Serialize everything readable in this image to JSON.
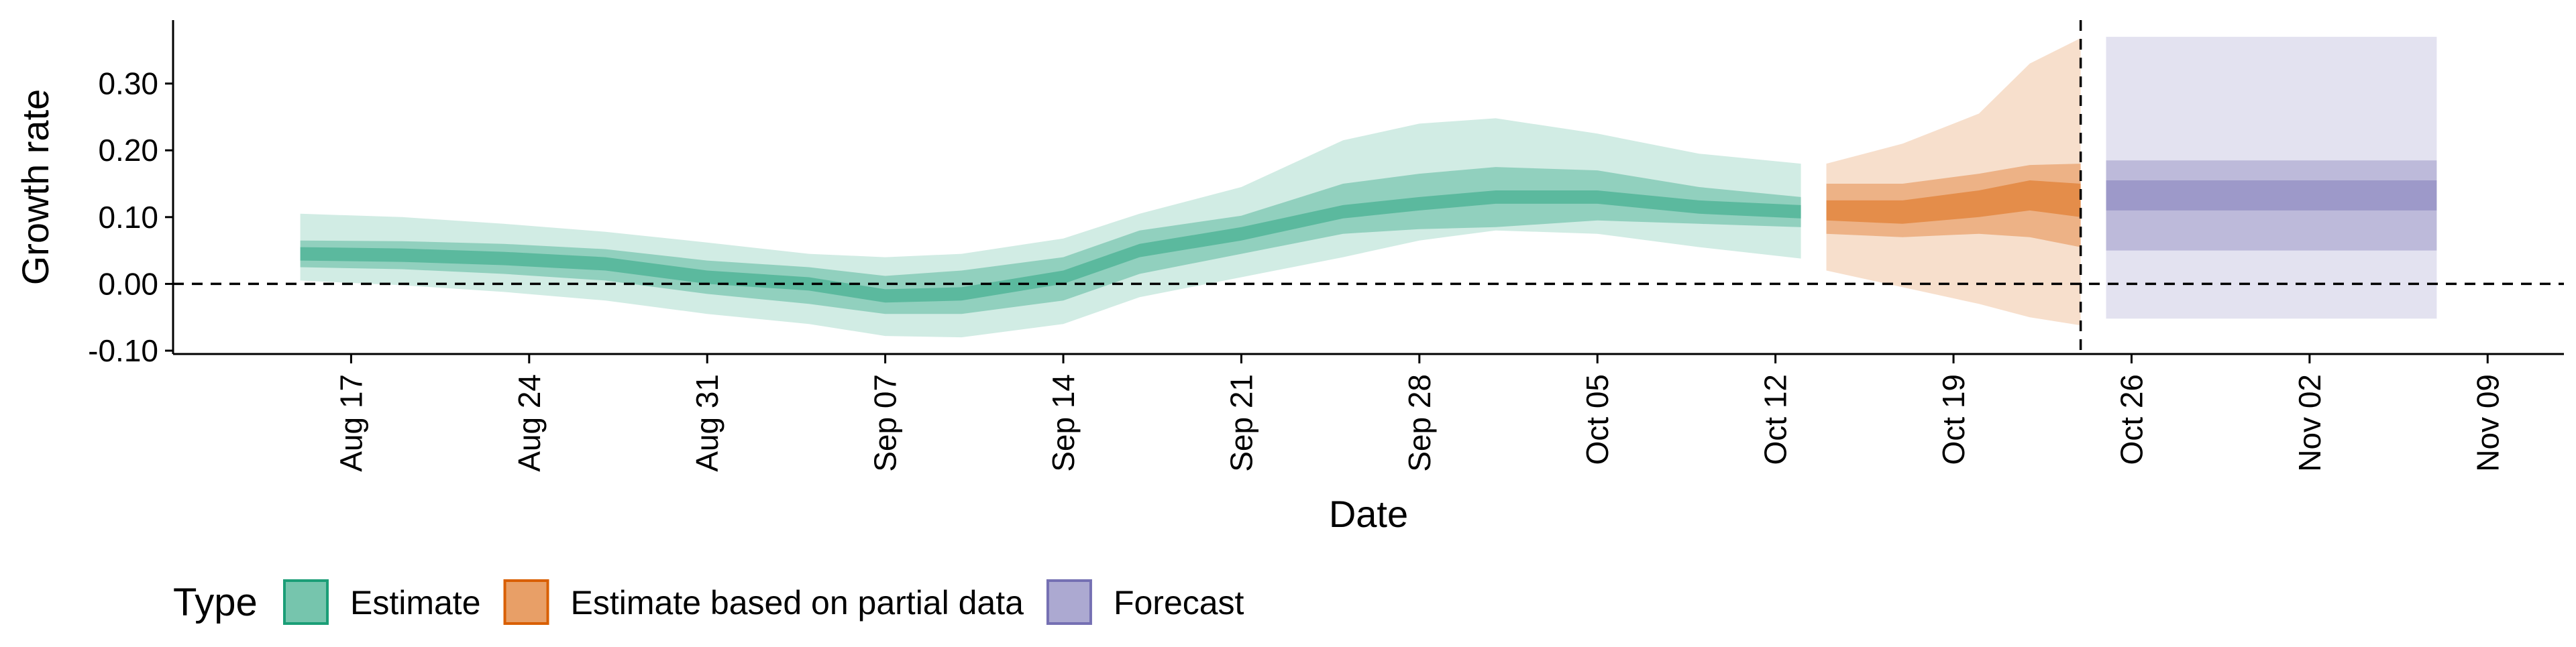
{
  "chart_data": {
    "type": "area",
    "xlabel": "Date",
    "ylabel": "Growth rate",
    "x_range": [
      "2021-08-10",
      "2021-11-12"
    ],
    "ylim": [
      -0.105,
      0.395
    ],
    "y_ticks": [
      -0.1,
      0.0,
      0.1,
      0.2,
      0.3
    ],
    "y_tick_labels": [
      "-0.10",
      "0.00",
      "0.10",
      "0.20",
      "0.30"
    ],
    "x_ticks": [
      "2021-08-17",
      "2021-08-24",
      "2021-08-31",
      "2021-09-07",
      "2021-09-14",
      "2021-09-21",
      "2021-09-28",
      "2021-10-05",
      "2021-10-12",
      "2021-10-19",
      "2021-10-26",
      "2021-11-02",
      "2021-11-09"
    ],
    "x_tick_labels": [
      "Aug 17",
      "Aug 24",
      "Aug 31",
      "Sep 07",
      "Sep 14",
      "Sep 21",
      "Sep 28",
      "Oct 05",
      "Oct 12",
      "Oct 19",
      "Oct 26",
      "Nov 02",
      "Nov 09"
    ],
    "reference_hline": 0.0,
    "reference_vline": "2021-10-24",
    "grid": false,
    "legend": {
      "title": "Type",
      "position": "bottom-left",
      "entries": [
        "Estimate",
        "Estimate based on partial data",
        "Forecast"
      ]
    },
    "colors": {
      "Estimate": "#1b9e77",
      "Estimate based on partial data": "#d95f02",
      "Forecast": "#7570b3"
    },
    "series": [
      {
        "name": "Estimate",
        "points": [
          {
            "x": "2021-08-15",
            "median": 0.045,
            "inner": [
              0.035,
              0.055
            ],
            "mid": [
              0.025,
              0.065
            ],
            "outer": [
              0.005,
              0.105
            ]
          },
          {
            "x": "2021-08-19",
            "median": 0.043,
            "inner": [
              0.033,
              0.053
            ],
            "mid": [
              0.022,
              0.064
            ],
            "outer": [
              -0.002,
              0.1
            ]
          },
          {
            "x": "2021-08-23",
            "median": 0.038,
            "inner": [
              0.028,
              0.048
            ],
            "mid": [
              0.015,
              0.06
            ],
            "outer": [
              -0.012,
              0.09
            ]
          },
          {
            "x": "2021-08-27",
            "median": 0.03,
            "inner": [
              0.02,
              0.04
            ],
            "mid": [
              0.005,
              0.052
            ],
            "outer": [
              -0.025,
              0.078
            ]
          },
          {
            "x": "2021-08-31",
            "median": 0.01,
            "inner": [
              0.0,
              0.02
            ],
            "mid": [
              -0.015,
              0.035
            ],
            "outer": [
              -0.045,
              0.062
            ]
          },
          {
            "x": "2021-09-04",
            "median": 0.0,
            "inner": [
              -0.01,
              0.01
            ],
            "mid": [
              -0.03,
              0.025
            ],
            "outer": [
              -0.06,
              0.045
            ]
          },
          {
            "x": "2021-09-07",
            "median": -0.018,
            "inner": [
              -0.028,
              -0.008
            ],
            "mid": [
              -0.045,
              0.012
            ],
            "outer": [
              -0.078,
              0.04
            ]
          },
          {
            "x": "2021-09-10",
            "median": -0.015,
            "inner": [
              -0.025,
              -0.005
            ],
            "mid": [
              -0.045,
              0.02
            ],
            "outer": [
              -0.08,
              0.045
            ]
          },
          {
            "x": "2021-09-14",
            "median": 0.01,
            "inner": [
              0.0,
              0.02
            ],
            "mid": [
              -0.025,
              0.04
            ],
            "outer": [
              -0.06,
              0.068
            ]
          },
          {
            "x": "2021-09-17",
            "median": 0.05,
            "inner": [
              0.04,
              0.06
            ],
            "mid": [
              0.015,
              0.08
            ],
            "outer": [
              -0.02,
              0.105
            ]
          },
          {
            "x": "2021-09-21",
            "median": 0.075,
            "inner": [
              0.065,
              0.085
            ],
            "mid": [
              0.045,
              0.102
            ],
            "outer": [
              0.01,
              0.145
            ]
          },
          {
            "x": "2021-09-25",
            "median": 0.108,
            "inner": [
              0.098,
              0.118
            ],
            "mid": [
              0.075,
              0.15
            ],
            "outer": [
              0.04,
              0.215
            ]
          },
          {
            "x": "2021-09-28",
            "median": 0.12,
            "inner": [
              0.11,
              0.13
            ],
            "mid": [
              0.082,
              0.165
            ],
            "outer": [
              0.065,
              0.24
            ]
          },
          {
            "x": "2021-10-01",
            "median": 0.13,
            "inner": [
              0.12,
              0.14
            ],
            "mid": [
              0.085,
              0.175
            ],
            "outer": [
              0.08,
              0.248
            ]
          },
          {
            "x": "2021-10-05",
            "median": 0.13,
            "inner": [
              0.12,
              0.14
            ],
            "mid": [
              0.095,
              0.17
            ],
            "outer": [
              0.075,
              0.225
            ]
          },
          {
            "x": "2021-10-09",
            "median": 0.115,
            "inner": [
              0.105,
              0.125
            ],
            "mid": [
              0.09,
              0.145
            ],
            "outer": [
              0.055,
              0.195
            ]
          },
          {
            "x": "2021-10-13",
            "median": 0.108,
            "inner": [
              0.098,
              0.118
            ],
            "mid": [
              0.085,
              0.13
            ],
            "outer": [
              0.038,
              0.18
            ]
          }
        ]
      },
      {
        "name": "Estimate based on partial data",
        "points": [
          {
            "x": "2021-10-14",
            "median": 0.11,
            "inner": [
              0.095,
              0.125
            ],
            "mid": [
              0.075,
              0.15
            ],
            "outer": [
              0.02,
              0.18
            ]
          },
          {
            "x": "2021-10-17",
            "median": 0.105,
            "inner": [
              0.09,
              0.125
            ],
            "mid": [
              0.07,
              0.15
            ],
            "outer": [
              -0.005,
              0.21
            ]
          },
          {
            "x": "2021-10-20",
            "median": 0.12,
            "inner": [
              0.1,
              0.14
            ],
            "mid": [
              0.075,
              0.165
            ],
            "outer": [
              -0.03,
              0.255
            ]
          },
          {
            "x": "2021-10-22",
            "median": 0.135,
            "inner": [
              0.11,
              0.155
            ],
            "mid": [
              0.07,
              0.178
            ],
            "outer": [
              -0.05,
              0.33
            ]
          },
          {
            "x": "2021-10-24",
            "median": 0.125,
            "inner": [
              0.1,
              0.15
            ],
            "mid": [
              0.055,
              0.18
            ],
            "outer": [
              -0.062,
              0.368
            ]
          }
        ]
      },
      {
        "name": "Forecast",
        "points": [
          {
            "x": "2021-10-25",
            "median": 0.133,
            "inner": [
              0.11,
              0.155
            ],
            "mid": [
              0.05,
              0.185
            ],
            "outer": [
              -0.052,
              0.37
            ]
          },
          {
            "x": "2021-11-07",
            "median": 0.133,
            "inner": [
              0.11,
              0.155
            ],
            "mid": [
              0.05,
              0.185
            ],
            "outer": [
              -0.052,
              0.37
            ]
          }
        ]
      }
    ]
  }
}
